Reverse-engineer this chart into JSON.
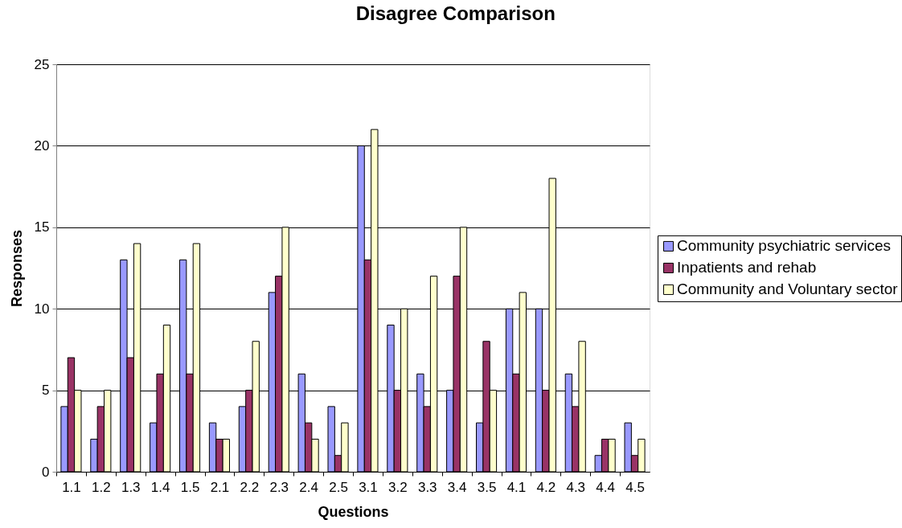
{
  "chart_data": {
    "type": "bar",
    "title": "Disagree Comparison",
    "xlabel": "Questions",
    "ylabel": "Responses",
    "categories": [
      "1.1",
      "1.2",
      "1.3",
      "1.4",
      "1.5",
      "2.1",
      "2.2",
      "2.3",
      "2.4",
      "2.5",
      "3.1",
      "3.2",
      "3.3",
      "3.4",
      "3.5",
      "4.1",
      "4.2",
      "4.3",
      "4.4",
      "4.5"
    ],
    "series": [
      {
        "name": "Community psychiatric services",
        "color": "#9999ff",
        "values": [
          4,
          2,
          13,
          3,
          13,
          3,
          4,
          11,
          6,
          4,
          20,
          9,
          6,
          5,
          3,
          10,
          10,
          6,
          1,
          3
        ]
      },
      {
        "name": "Inpatients and rehab",
        "color": "#993366",
        "values": [
          7,
          4,
          7,
          6,
          6,
          2,
          5,
          12,
          3,
          1,
          13,
          5,
          4,
          12,
          8,
          6,
          5,
          4,
          2,
          1
        ]
      },
      {
        "name": "Community and Voluntary sector",
        "color": "#ffffcc",
        "values": [
          5,
          5,
          14,
          9,
          14,
          2,
          8,
          15,
          2,
          3,
          21,
          10,
          12,
          15,
          5,
          11,
          18,
          8,
          2,
          2
        ]
      }
    ],
    "ylim": [
      0,
      25
    ],
    "yticks": [
      0,
      5,
      10,
      15,
      20,
      25
    ],
    "grid": "y",
    "legend": "right"
  }
}
